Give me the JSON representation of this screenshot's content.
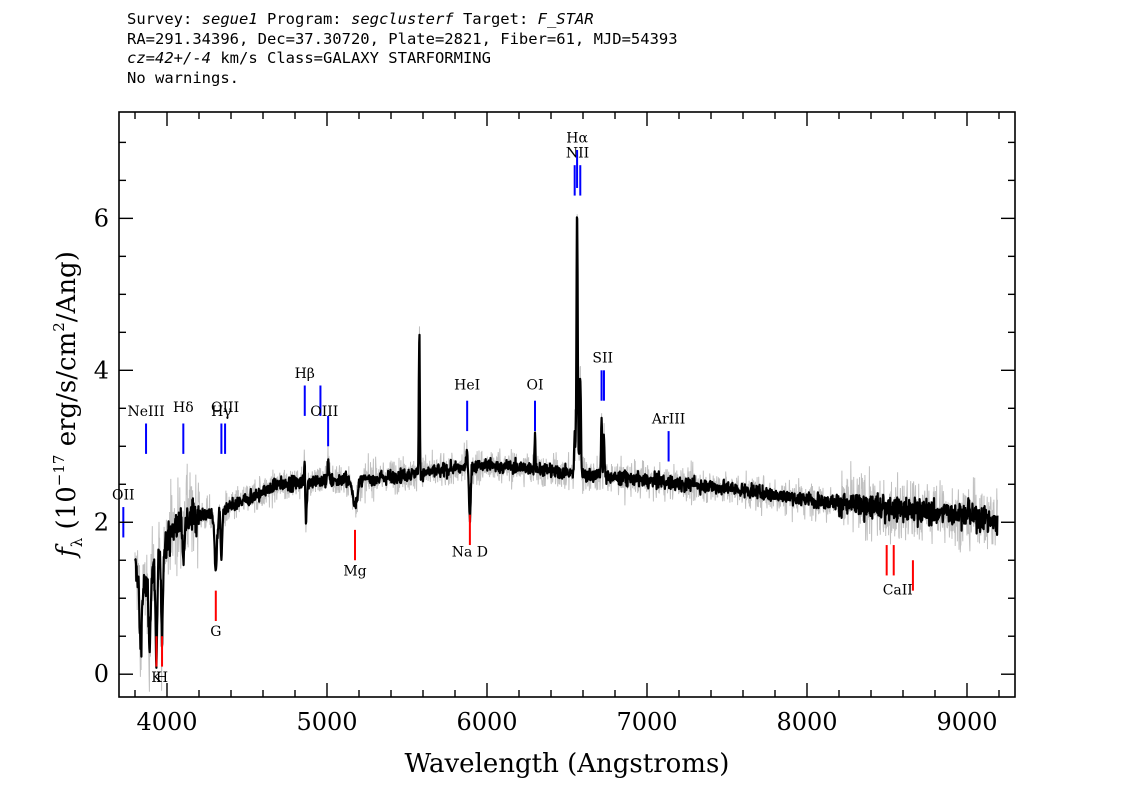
{
  "header": {
    "line1": {
      "survey_label": "Survey: ",
      "survey": "segue1",
      "program_label": " Program: ",
      "program": "segclusterf",
      "target_label": " Target: ",
      "target": "F_STAR"
    },
    "line2": "RA=291.34396, Dec=37.30720, Plate=2821, Fiber=61, MJD=54393",
    "line3": {
      "cz": "cz=42+/-4",
      "rest": " km/s Class=GALAXY STARFORMING"
    },
    "line4": "No warnings."
  },
  "chart_data": {
    "type": "line",
    "xlabel": "Wavelength (Angstroms)",
    "ylabel": "f_λ (10^-17 erg/s/cm^2/Ang)",
    "ylabel_parts": {
      "f": "f",
      "lambda": "λ",
      "open": " (10",
      "exp1": "−17",
      "mid": " erg/s/cm",
      "exp2": "2",
      "close": "/Ang)"
    },
    "xlim": [
      3700,
      9300
    ],
    "ylim": [
      -0.3,
      7.4
    ],
    "xticks": [
      4000,
      5000,
      6000,
      7000,
      8000,
      9000
    ],
    "xtick_labels": [
      "4000",
      "5000",
      "6000",
      "7000",
      "8000",
      "9000"
    ],
    "yticks": [
      0,
      2,
      4,
      6
    ],
    "ytick_labels": [
      "0",
      "2",
      "4",
      "6"
    ],
    "series": [
      {
        "color": "#000000",
        "noise_color": "#c0c0c0",
        "range": [
          3800,
          9190
        ],
        "continuum": [
          [
            3800,
            1.4
          ],
          [
            3850,
            1.1
          ],
          [
            3900,
            1.3
          ],
          [
            3950,
            1.5
          ],
          [
            4000,
            1.8
          ],
          [
            4100,
            2.05
          ],
          [
            4200,
            2.1
          ],
          [
            4300,
            2.1
          ],
          [
            4400,
            2.2
          ],
          [
            4500,
            2.3
          ],
          [
            4700,
            2.5
          ],
          [
            5000,
            2.55
          ],
          [
            5200,
            2.55
          ],
          [
            5400,
            2.6
          ],
          [
            5600,
            2.65
          ],
          [
            5800,
            2.7
          ],
          [
            6000,
            2.75
          ],
          [
            6200,
            2.72
          ],
          [
            6500,
            2.65
          ],
          [
            7000,
            2.55
          ],
          [
            7500,
            2.45
          ],
          [
            8000,
            2.3
          ],
          [
            8500,
            2.18
          ],
          [
            9000,
            2.1
          ],
          [
            9190,
            2.0
          ]
        ],
        "features": [
          {
            "x": 3835,
            "depth": -0.9,
            "width": 6
          },
          {
            "x": 3890,
            "depth": -0.9,
            "width": 6
          },
          {
            "x": 3934,
            "depth": -1.3,
            "width": 5
          },
          {
            "x": 3969,
            "depth": -1.3,
            "width": 5
          },
          {
            "x": 4102,
            "depth": -0.5,
            "width": 5
          },
          {
            "x": 4305,
            "depth": -0.7,
            "width": 8
          },
          {
            "x": 4340,
            "depth": -0.6,
            "width": 5
          },
          {
            "x": 4861,
            "depth": 0.9,
            "width": 4
          },
          {
            "x": 4865,
            "depth": -0.8,
            "width": 6
          },
          {
            "x": 5007,
            "depth": 0.3,
            "width": 4
          },
          {
            "x": 5175,
            "depth": -0.3,
            "width": 15
          },
          {
            "x": 5577,
            "depth": 1.9,
            "width": 3
          },
          {
            "x": 5875,
            "depth": 0.25,
            "width": 4
          },
          {
            "x": 5893,
            "depth": -0.7,
            "width": 5
          },
          {
            "x": 6300,
            "depth": 0.5,
            "width": 3
          },
          {
            "x": 6548,
            "depth": 0.6,
            "width": 3
          },
          {
            "x": 6563,
            "depth": 3.5,
            "width": 4
          },
          {
            "x": 6583,
            "depth": 1.3,
            "width": 4
          },
          {
            "x": 6716,
            "depth": 0.8,
            "width": 3
          },
          {
            "x": 6731,
            "depth": 0.6,
            "width": 3
          }
        ]
      }
    ],
    "emission_lines": [
      {
        "label": "OII",
        "x": 3727,
        "y0": 1.8,
        "y1": 2.2,
        "label_y": 2.3
      },
      {
        "label": "NeIII",
        "x": 3869,
        "y0": 2.9,
        "y1": 3.3,
        "label_y": 3.4
      },
      {
        "label": "Hδ",
        "x": 4102,
        "y0": 2.9,
        "y1": 3.3,
        "label_y": 3.45
      },
      {
        "label": "Hγ",
        "x": 4340,
        "y0": 2.9,
        "y1": 3.3,
        "label_y": 3.4
      },
      {
        "label": "OIII",
        "x": 4363,
        "y0": 2.9,
        "y1": 3.3,
        "label_y": 3.45
      },
      {
        "label": "Hβ",
        "x": 4861,
        "y0": 3.4,
        "y1": 3.8,
        "label_y": 3.9
      },
      {
        "label": "OIII",
        "x": 4959,
        "y0": 3.4,
        "y1": 3.8,
        "label_y": 3.4
      },
      {
        "label": "OIII",
        "x": 5007,
        "y0": 3.0,
        "y1": 3.4,
        "label_y": 3.4
      },
      {
        "label": "HeI",
        "x": 5876,
        "y0": 3.2,
        "y1": 3.6,
        "label_y": 3.75
      },
      {
        "label": "OI",
        "x": 6300,
        "y0": 3.2,
        "y1": 3.6,
        "label_y": 3.75
      },
      {
        "label": "NII",
        "x": 6548,
        "y0": 6.3,
        "y1": 6.7,
        "label_y": 6.8
      },
      {
        "label": "Hα",
        "x": 6563,
        "y0": 6.4,
        "y1": 6.9,
        "label_y": 7.0
      },
      {
        "label": "NII",
        "x": 6583,
        "y0": 6.3,
        "y1": 6.7,
        "label_y": 6.8
      },
      {
        "label": "SII",
        "x": 6716,
        "y0": 3.6,
        "y1": 4.0,
        "label_y": 4.1
      },
      {
        "label": "SII",
        "x": 6731,
        "y0": 3.6,
        "y1": 4.0,
        "label_y": 4.1
      },
      {
        "label": "ArIII",
        "x": 7135,
        "y0": 2.8,
        "y1": 3.2,
        "label_y": 3.3
      }
    ],
    "absorption_lines": [
      {
        "label": "K",
        "x": 3934,
        "y0": 0.1,
        "y1": 0.5,
        "label_y": -0.1
      },
      {
        "label": "H",
        "x": 3969,
        "y0": 0.1,
        "y1": 0.5,
        "label_y": -0.1
      },
      {
        "label": "G",
        "x": 4305,
        "y0": 0.7,
        "y1": 1.1,
        "label_y": 0.5
      },
      {
        "label": "Mg",
        "x": 5175,
        "y0": 1.5,
        "y1": 1.9,
        "label_y": 1.3
      },
      {
        "label": "Na D",
        "x": 5893,
        "y0": 1.7,
        "y1": 2.1,
        "label_y": 1.55
      },
      {
        "label": "CaII",
        "x": 8498,
        "y0": 1.3,
        "y1": 1.7,
        "label_y": 1.05
      },
      {
        "label": "CaII",
        "x": 8542,
        "y0": 1.3,
        "y1": 1.7,
        "label_y": 1.05
      },
      {
        "label": "CaII",
        "x": 8662,
        "y0": 1.1,
        "y1": 1.5,
        "label_y": 1.05
      }
    ],
    "colors": {
      "emission": "#0000ff",
      "absorption": "#ff0000",
      "frame": "#000000"
    }
  }
}
